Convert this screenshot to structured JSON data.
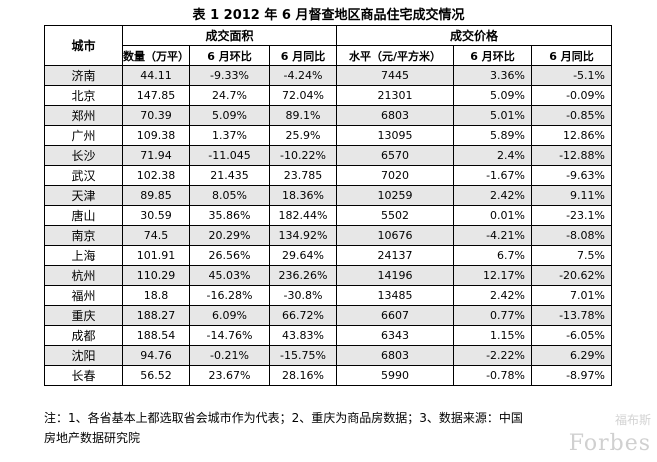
{
  "title": "表 1    2012 年 6 月督查地区商品住宅成交情况",
  "headers": {
    "city": "城市",
    "area_group": "成交面积",
    "price_group": "成交价格",
    "area": "数量（万平）",
    "area_mom": "6 月环比",
    "area_yoy": "6 月同比",
    "price": "水平（元/平方米）",
    "price_mom": "6 月环比",
    "price_yoy": "6 月同比"
  },
  "rows": [
    {
      "city": "济南",
      "area": "44.11",
      "area_mom": "-9.33%",
      "area_yoy": "-4.24%",
      "price": "7445",
      "price_mom": "3.36%",
      "price_yoy": "-5.1%"
    },
    {
      "city": "北京",
      "area": "147.85",
      "area_mom": "24.7%",
      "area_yoy": "72.04%",
      "price": "21301",
      "price_mom": "5.09%",
      "price_yoy": "-0.09%"
    },
    {
      "city": "郑州",
      "area": "70.39",
      "area_mom": "5.09%",
      "area_yoy": "89.1%",
      "price": "6803",
      "price_mom": "5.01%",
      "price_yoy": "-0.85%"
    },
    {
      "city": "广州",
      "area": "109.38",
      "area_mom": "1.37%",
      "area_yoy": "25.9%",
      "price": "13095",
      "price_mom": "5.89%",
      "price_yoy": "12.86%"
    },
    {
      "city": "长沙",
      "area": "71.94",
      "area_mom": "-11.045",
      "area_yoy": "-10.22%",
      "price": "6570",
      "price_mom": "2.4%",
      "price_yoy": "-12.88%"
    },
    {
      "city": "武汉",
      "area": "102.38",
      "area_mom": "21.435",
      "area_yoy": "23.785",
      "price": "7020",
      "price_mom": "-1.67%",
      "price_yoy": "-9.63%"
    },
    {
      "city": "天津",
      "area": "89.85",
      "area_mom": "8.05%",
      "area_yoy": "18.36%",
      "price": "10259",
      "price_mom": "2.42%",
      "price_yoy": "9.11%"
    },
    {
      "city": "唐山",
      "area": "30.59",
      "area_mom": "35.86%",
      "area_yoy": "182.44%",
      "price": "5502",
      "price_mom": "0.01%",
      "price_yoy": "-23.1%"
    },
    {
      "city": "南京",
      "area": "74.5",
      "area_mom": "20.29%",
      "area_yoy": "134.92%",
      "price": "10676",
      "price_mom": "-4.21%",
      "price_yoy": "-8.08%"
    },
    {
      "city": "上海",
      "area": "101.91",
      "area_mom": "26.56%",
      "area_yoy": "29.64%",
      "price": "24137",
      "price_mom": "6.7%",
      "price_yoy": "7.5%"
    },
    {
      "city": "杭州",
      "area": "110.29",
      "area_mom": "45.03%",
      "area_yoy": "236.26%",
      "price": "14196",
      "price_mom": "12.17%",
      "price_yoy": "-20.62%"
    },
    {
      "city": "福州",
      "area": "18.8",
      "area_mom": "-16.28%",
      "area_yoy": "-30.8%",
      "price": "13485",
      "price_mom": "2.42%",
      "price_yoy": "7.01%"
    },
    {
      "city": "重庆",
      "area": "188.27",
      "area_mom": "6.09%",
      "area_yoy": "66.72%",
      "price": "6607",
      "price_mom": "0.77%",
      "price_yoy": "-13.78%"
    },
    {
      "city": "成都",
      "area": "188.54",
      "area_mom": "-14.76%",
      "area_yoy": "43.83%",
      "price": "6343",
      "price_mom": "1.15%",
      "price_yoy": "-6.05%"
    },
    {
      "city": "沈阳",
      "area": "94.76",
      "area_mom": "-0.21%",
      "area_yoy": "-15.75%",
      "price": "6803",
      "price_mom": "-2.22%",
      "price_yoy": "6.29%"
    },
    {
      "city": "长春",
      "area": "56.52",
      "area_mom": "23.67%",
      "area_yoy": "28.16%",
      "price": "5990",
      "price_mom": "-0.78%",
      "price_yoy": "-8.97%"
    }
  ],
  "note_line1": "注：1、各省基本上都选取省会城市作为代表；2、重庆为商品房数据；3、数据来源：中国",
  "note_line2": "房地产数据研究院",
  "watermark": "Forbes",
  "watermark_cn": "福布斯"
}
